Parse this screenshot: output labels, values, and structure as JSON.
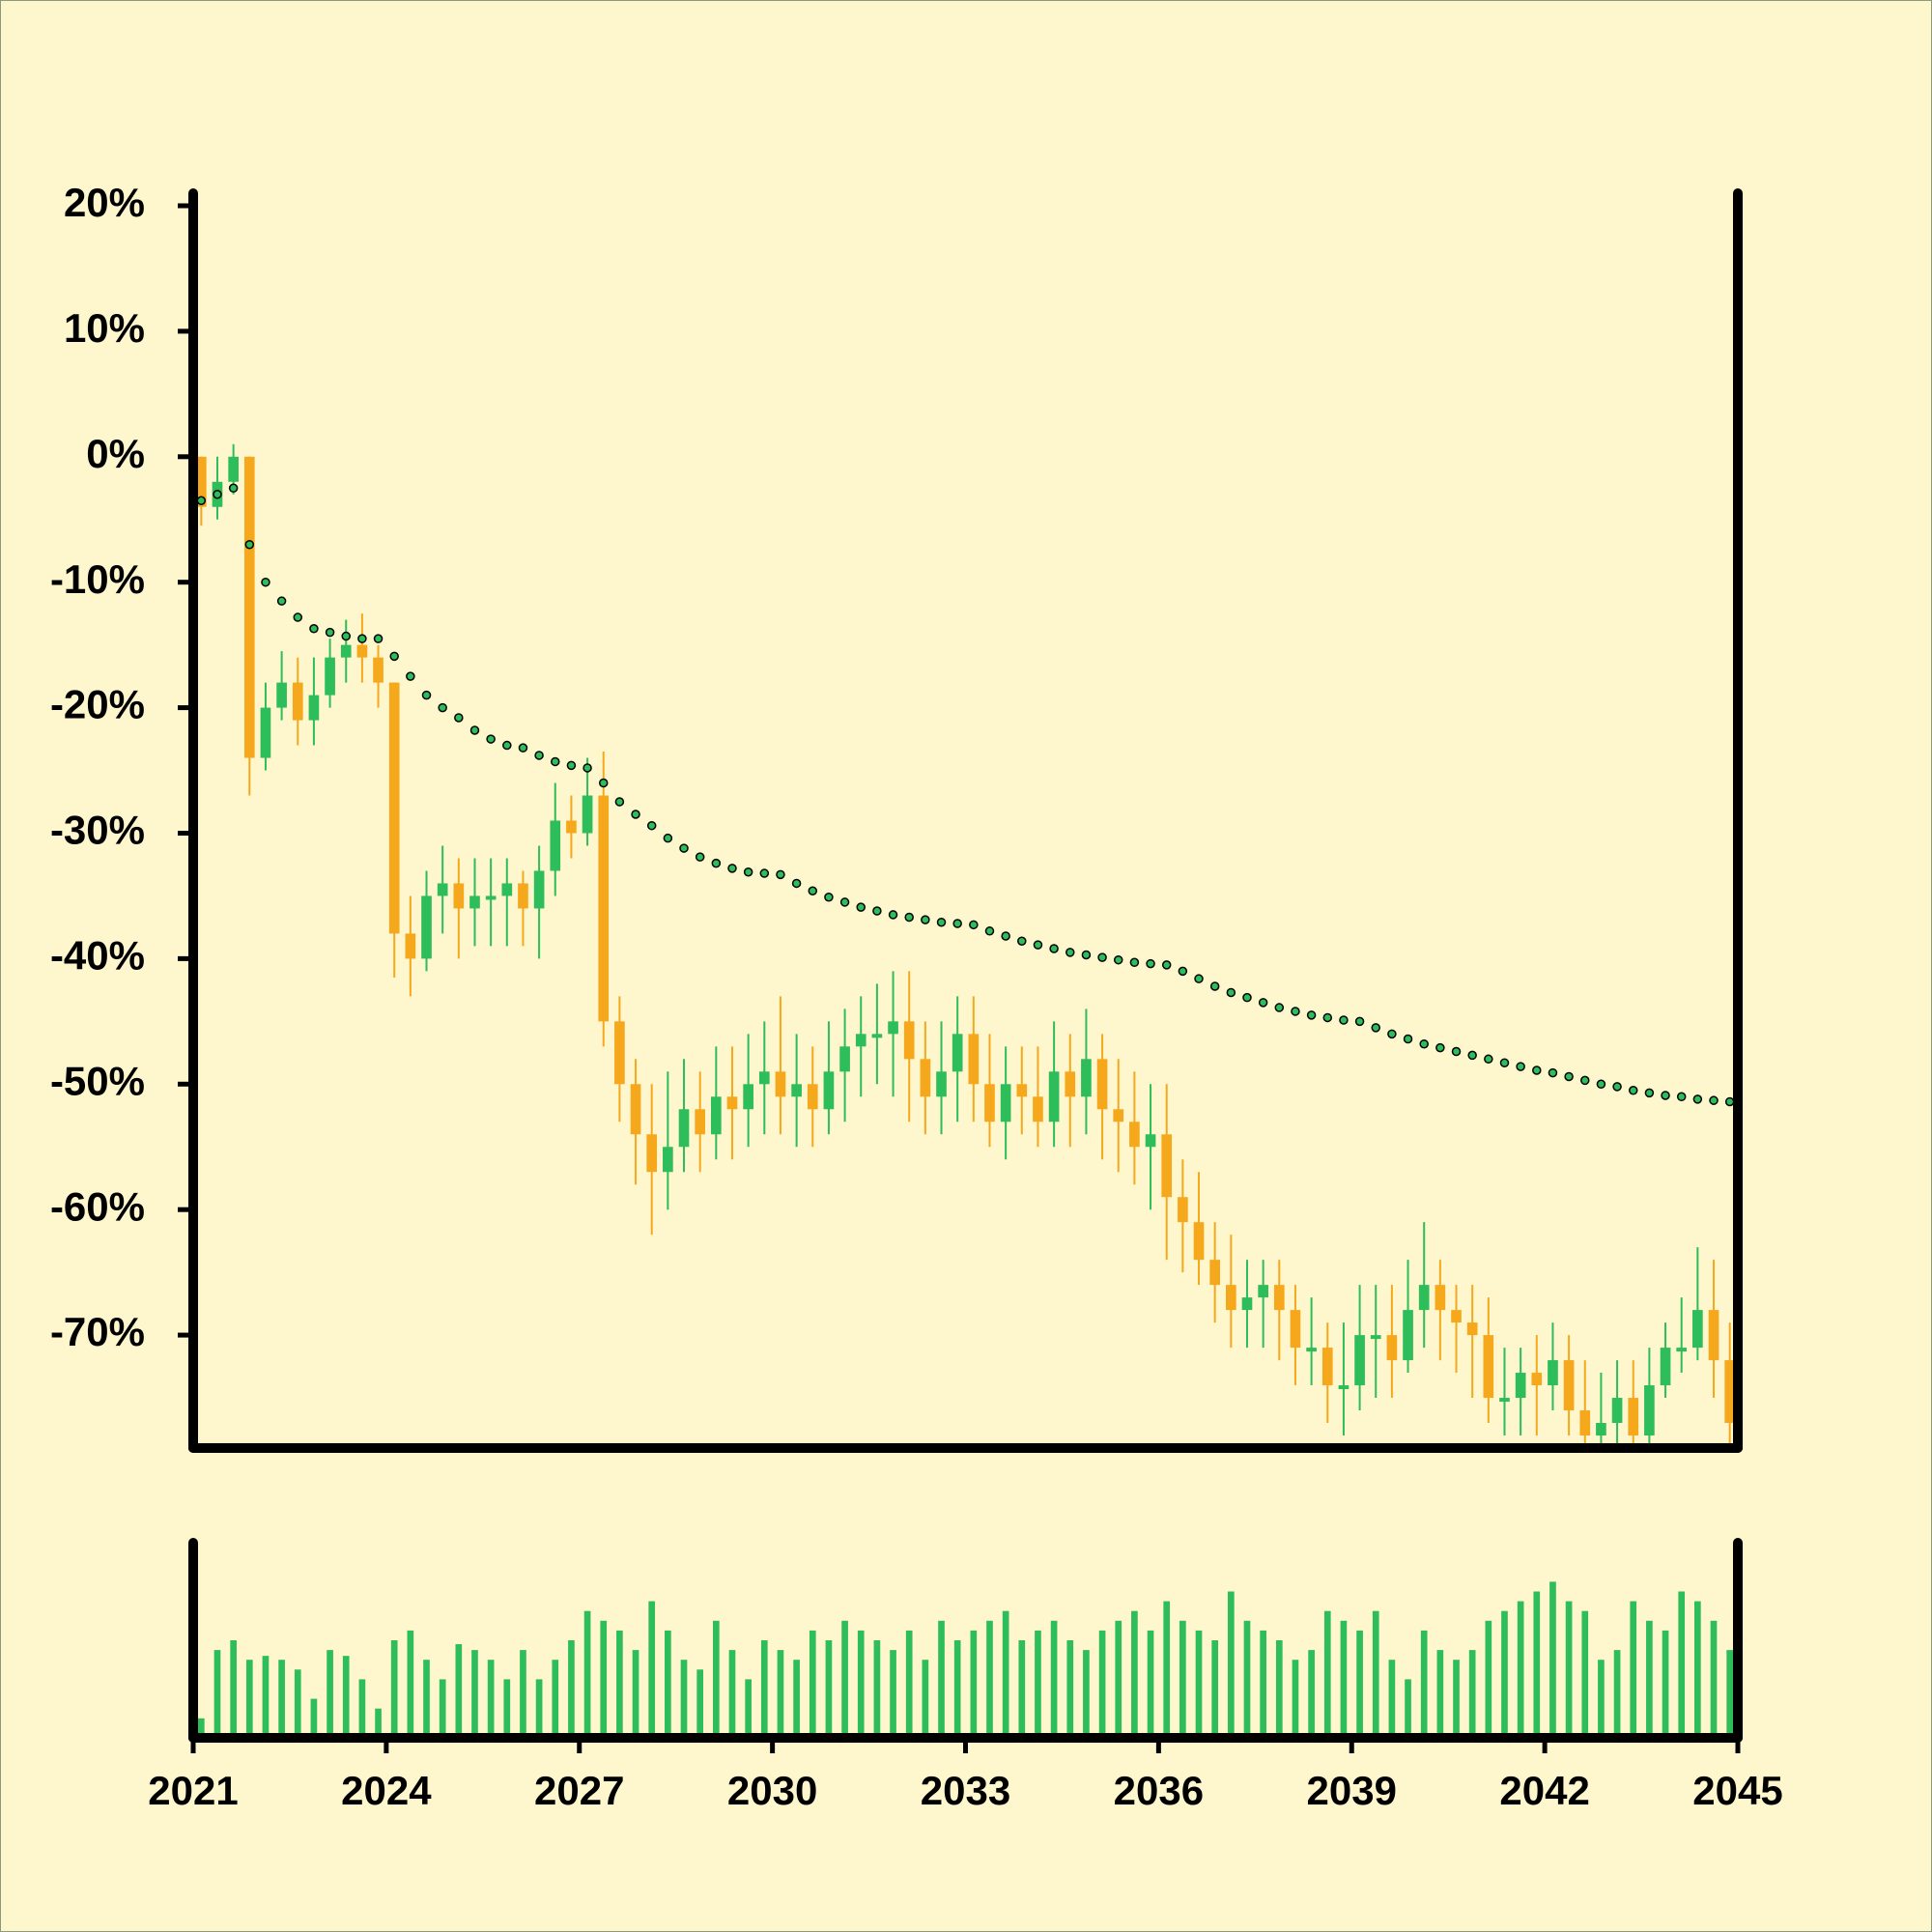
{
  "chart_data": {
    "type": "candlestick",
    "x": [
      2021,
      2021.25,
      2021.5,
      2021.75,
      2022,
      2022.25,
      2022.5,
      2022.75,
      2023,
      2023.25,
      2023.5,
      2023.75,
      2024,
      2024.25,
      2024.5,
      2024.75,
      2025,
      2025.25,
      2025.5,
      2025.75,
      2026,
      2026.25,
      2026.5,
      2026.75,
      2027,
      2027.25,
      2027.5,
      2027.75,
      2028,
      2028.25,
      2028.5,
      2028.75,
      2029,
      2029.25,
      2029.5,
      2029.75,
      2030,
      2030.25,
      2030.5,
      2030.75,
      2031,
      2031.25,
      2031.5,
      2031.75,
      2032,
      2032.25,
      2032.5,
      2032.75,
      2033,
      2033.25,
      2033.5,
      2033.75,
      2034,
      2034.25,
      2034.5,
      2034.75,
      2035,
      2035.25,
      2035.5,
      2035.75,
      2036,
      2036.25,
      2036.5,
      2036.75,
      2037,
      2037.25,
      2037.5,
      2037.75,
      2038,
      2038.25,
      2038.5,
      2038.75,
      2039,
      2039.25,
      2039.5,
      2039.75,
      2040,
      2040.25,
      2040.5,
      2040.75,
      2041,
      2041.25,
      2041.5,
      2041.75,
      2042,
      2042.25,
      2042.5,
      2042.75,
      2043,
      2043.25,
      2043.5,
      2043.75,
      2044,
      2044.25,
      2044.5,
      2044.75
    ],
    "open": [
      0,
      -4,
      -2,
      0,
      -24,
      -20,
      -18,
      -21,
      -19,
      -16,
      -15,
      -16,
      -18,
      -38,
      -40,
      -35,
      -34,
      -36,
      -35,
      -35,
      -34,
      -36,
      -33,
      -29,
      -30,
      -27,
      -45,
      -50,
      -54,
      -57,
      -55,
      -52,
      -54,
      -51,
      -52,
      -50,
      -49,
      -51,
      -50,
      -52,
      -49,
      -47,
      -46,
      -46,
      -45,
      -48,
      -51,
      -49,
      -46,
      -50,
      -53,
      -50,
      -51,
      -53,
      -49,
      -51,
      -48,
      -52,
      -53,
      -55,
      -54,
      -59,
      -61,
      -64,
      -66,
      -68,
      -67,
      -66,
      -68,
      -71,
      -71,
      -74,
      -74,
      -70,
      -70,
      -72,
      -68,
      -66,
      -68,
      -69,
      -70,
      -75,
      -75,
      -73,
      -74,
      -72,
      -76,
      -78,
      -77,
      -75,
      -78,
      -74,
      -71,
      -71,
      -68,
      -72
    ],
    "high": [
      0,
      0,
      1,
      0,
      -18,
      -15.5,
      -16,
      -16,
      -14.5,
      -13,
      -12.5,
      -15,
      -18,
      -35,
      -33,
      -31,
      -32,
      -32,
      -32,
      -32,
      -33,
      -31,
      -26,
      -27,
      -24,
      -23.5,
      -43,
      -48,
      -50,
      -49,
      -48,
      -49,
      -47,
      -47,
      -46,
      -45,
      -43,
      -46,
      -47,
      -45,
      -44,
      -43,
      -42,
      -41,
      -41,
      -45,
      -45,
      -43,
      -43,
      -46,
      -47,
      -47,
      -47,
      -45,
      -46,
      -44,
      -46,
      -48,
      -49,
      -50,
      -50,
      -56,
      -57,
      -61,
      -62,
      -64,
      -64,
      -64,
      -66,
      -67,
      -69,
      -69,
      -66,
      -66,
      -66,
      -64,
      -61,
      -64,
      -66,
      -66,
      -67,
      -71,
      -71,
      -70,
      -69,
      -70,
      -72,
      -73,
      -72,
      -72,
      -71,
      -69,
      -67,
      -63,
      -64,
      -69
    ],
    "low": [
      -5.5,
      -5,
      -3,
      -27,
      -25,
      -21,
      -23,
      -23,
      -20,
      -18,
      -18,
      -20,
      -41.5,
      -43,
      -41,
      -38,
      -40,
      -39,
      -39,
      -39,
      -39,
      -40,
      -35,
      -32,
      -31,
      -47,
      -53,
      -58,
      -62,
      -60,
      -57,
      -57,
      -56,
      -56,
      -55,
      -54,
      -54,
      -55,
      -55,
      -54,
      -53,
      -51,
      -50,
      -51,
      -53,
      -54,
      -54,
      -53,
      -53,
      -55,
      -56,
      -54,
      -55,
      -55,
      -55,
      -54,
      -56,
      -57,
      -58,
      -60,
      -64,
      -65,
      -66,
      -69,
      -71,
      -71,
      -71,
      -72,
      -74,
      -74,
      -77,
      -78,
      -76,
      -75,
      -75,
      -73,
      -71,
      -72,
      -73,
      -75,
      -77,
      -78,
      -78,
      -78,
      -76,
      -78,
      -79,
      -79,
      -79,
      -79,
      -79,
      -75,
      -73,
      -72,
      -75,
      -79
    ],
    "close": [
      -4,
      -2,
      0,
      -24,
      -20,
      -18,
      -21,
      -19,
      -16,
      -15,
      -16,
      -18,
      -38,
      -40,
      -35,
      -34,
      -36,
      -35,
      -35,
      -34,
      -36,
      -33,
      -29,
      -30,
      -27,
      -45,
      -50,
      -54,
      -57,
      -55,
      -52,
      -54,
      -51,
      -52,
      -50,
      -49,
      -51,
      -50,
      -52,
      -49,
      -47,
      -46,
      -46,
      -45,
      -48,
      -51,
      -49,
      -46,
      -50,
      -53,
      -50,
      -51,
      -53,
      -49,
      -51,
      -48,
      -52,
      -53,
      -55,
      -54,
      -59,
      -61,
      -64,
      -66,
      -68,
      -67,
      -66,
      -68,
      -71,
      -71,
      -74,
      -74,
      -70,
      -70,
      -72,
      -68,
      -66,
      -68,
      -69,
      -70,
      -75,
      -75,
      -73,
      -74,
      -72,
      -76,
      -78,
      -77,
      -75,
      -78,
      -74,
      -71,
      -71,
      -68,
      -72,
      -77
    ],
    "ma_values": [
      -3.5,
      -3,
      -2.5,
      -7,
      -10,
      -11.5,
      -12.8,
      -13.7,
      -14,
      -14.3,
      -14.5,
      -14.5,
      -15.9,
      -17.5,
      -19,
      -20,
      -20.8,
      -21.8,
      -22.5,
      -23,
      -23.2,
      -23.8,
      -24.3,
      -24.6,
      -24.8,
      -26,
      -27.5,
      -28.5,
      -29.4,
      -30.4,
      -31.2,
      -31.9,
      -32.4,
      -32.8,
      -33.1,
      -33.2,
      -33.3,
      -34,
      -34.6,
      -35.1,
      -35.5,
      -35.9,
      -36.2,
      -36.5,
      -36.7,
      -36.9,
      -37.1,
      -37.2,
      -37.3,
      -37.8,
      -38.2,
      -38.6,
      -38.9,
      -39.2,
      -39.5,
      -39.7,
      -39.9,
      -40.1,
      -40.3,
      -40.4,
      -40.5,
      -41,
      -41.6,
      -42.2,
      -42.7,
      -43.1,
      -43.5,
      -43.9,
      -44.2,
      -44.5,
      -44.7,
      -44.9,
      -45,
      -45.5,
      -46,
      -46.4,
      -46.8,
      -47.1,
      -47.4,
      -47.7,
      -48,
      -48.3,
      -48.6,
      -48.9,
      -49.1,
      -49.4,
      -49.7,
      -50,
      -50.2,
      -50.5,
      -50.7,
      -50.9,
      -51,
      -51.2,
      -51.3,
      -51.4
    ],
    "volume": [
      10,
      45,
      50,
      40,
      42,
      40,
      35,
      20,
      45,
      42,
      30,
      15,
      50,
      55,
      40,
      30,
      48,
      45,
      40,
      30,
      45,
      30,
      40,
      50,
      65,
      60,
      55,
      45,
      70,
      55,
      40,
      35,
      60,
      45,
      30,
      50,
      45,
      40,
      55,
      50,
      60,
      55,
      50,
      45,
      55,
      40,
      60,
      50,
      55,
      60,
      65,
      50,
      55,
      60,
      50,
      45,
      55,
      60,
      65,
      55,
      70,
      60,
      55,
      50,
      75,
      60,
      55,
      50,
      40,
      45,
      65,
      60,
      55,
      65,
      40,
      30,
      55,
      45,
      40,
      45,
      60,
      65,
      70,
      75,
      80,
      70,
      65,
      40,
      45,
      70,
      60,
      55,
      75,
      70,
      60,
      45
    ],
    "up_color": "#2dbd5a",
    "down_color": "#f5a81c",
    "ma_color": "#2dbd5a",
    "volume_color": "#2dbd5a",
    "xlim": [
      2021,
      2045
    ],
    "xticks": [
      2021,
      2024,
      2027,
      2030,
      2033,
      2036,
      2039,
      2042,
      2045
    ],
    "ylim": [
      -79,
      21
    ],
    "yticks": [
      {
        "value": 20,
        "label": "20%"
      },
      {
        "value": 10,
        "label": "10%"
      },
      {
        "value": 0,
        "label": "0%"
      },
      {
        "value": -10,
        "label": "-10%"
      },
      {
        "value": -20,
        "label": "-20%"
      },
      {
        "value": -30,
        "label": "-30%"
      },
      {
        "value": -40,
        "label": "-40%"
      },
      {
        "value": -50,
        "label": "-50%"
      },
      {
        "value": -60,
        "label": "-60%"
      },
      {
        "value": -70,
        "label": "-70%"
      }
    ],
    "volume_ylim": [
      0,
      100
    ]
  }
}
